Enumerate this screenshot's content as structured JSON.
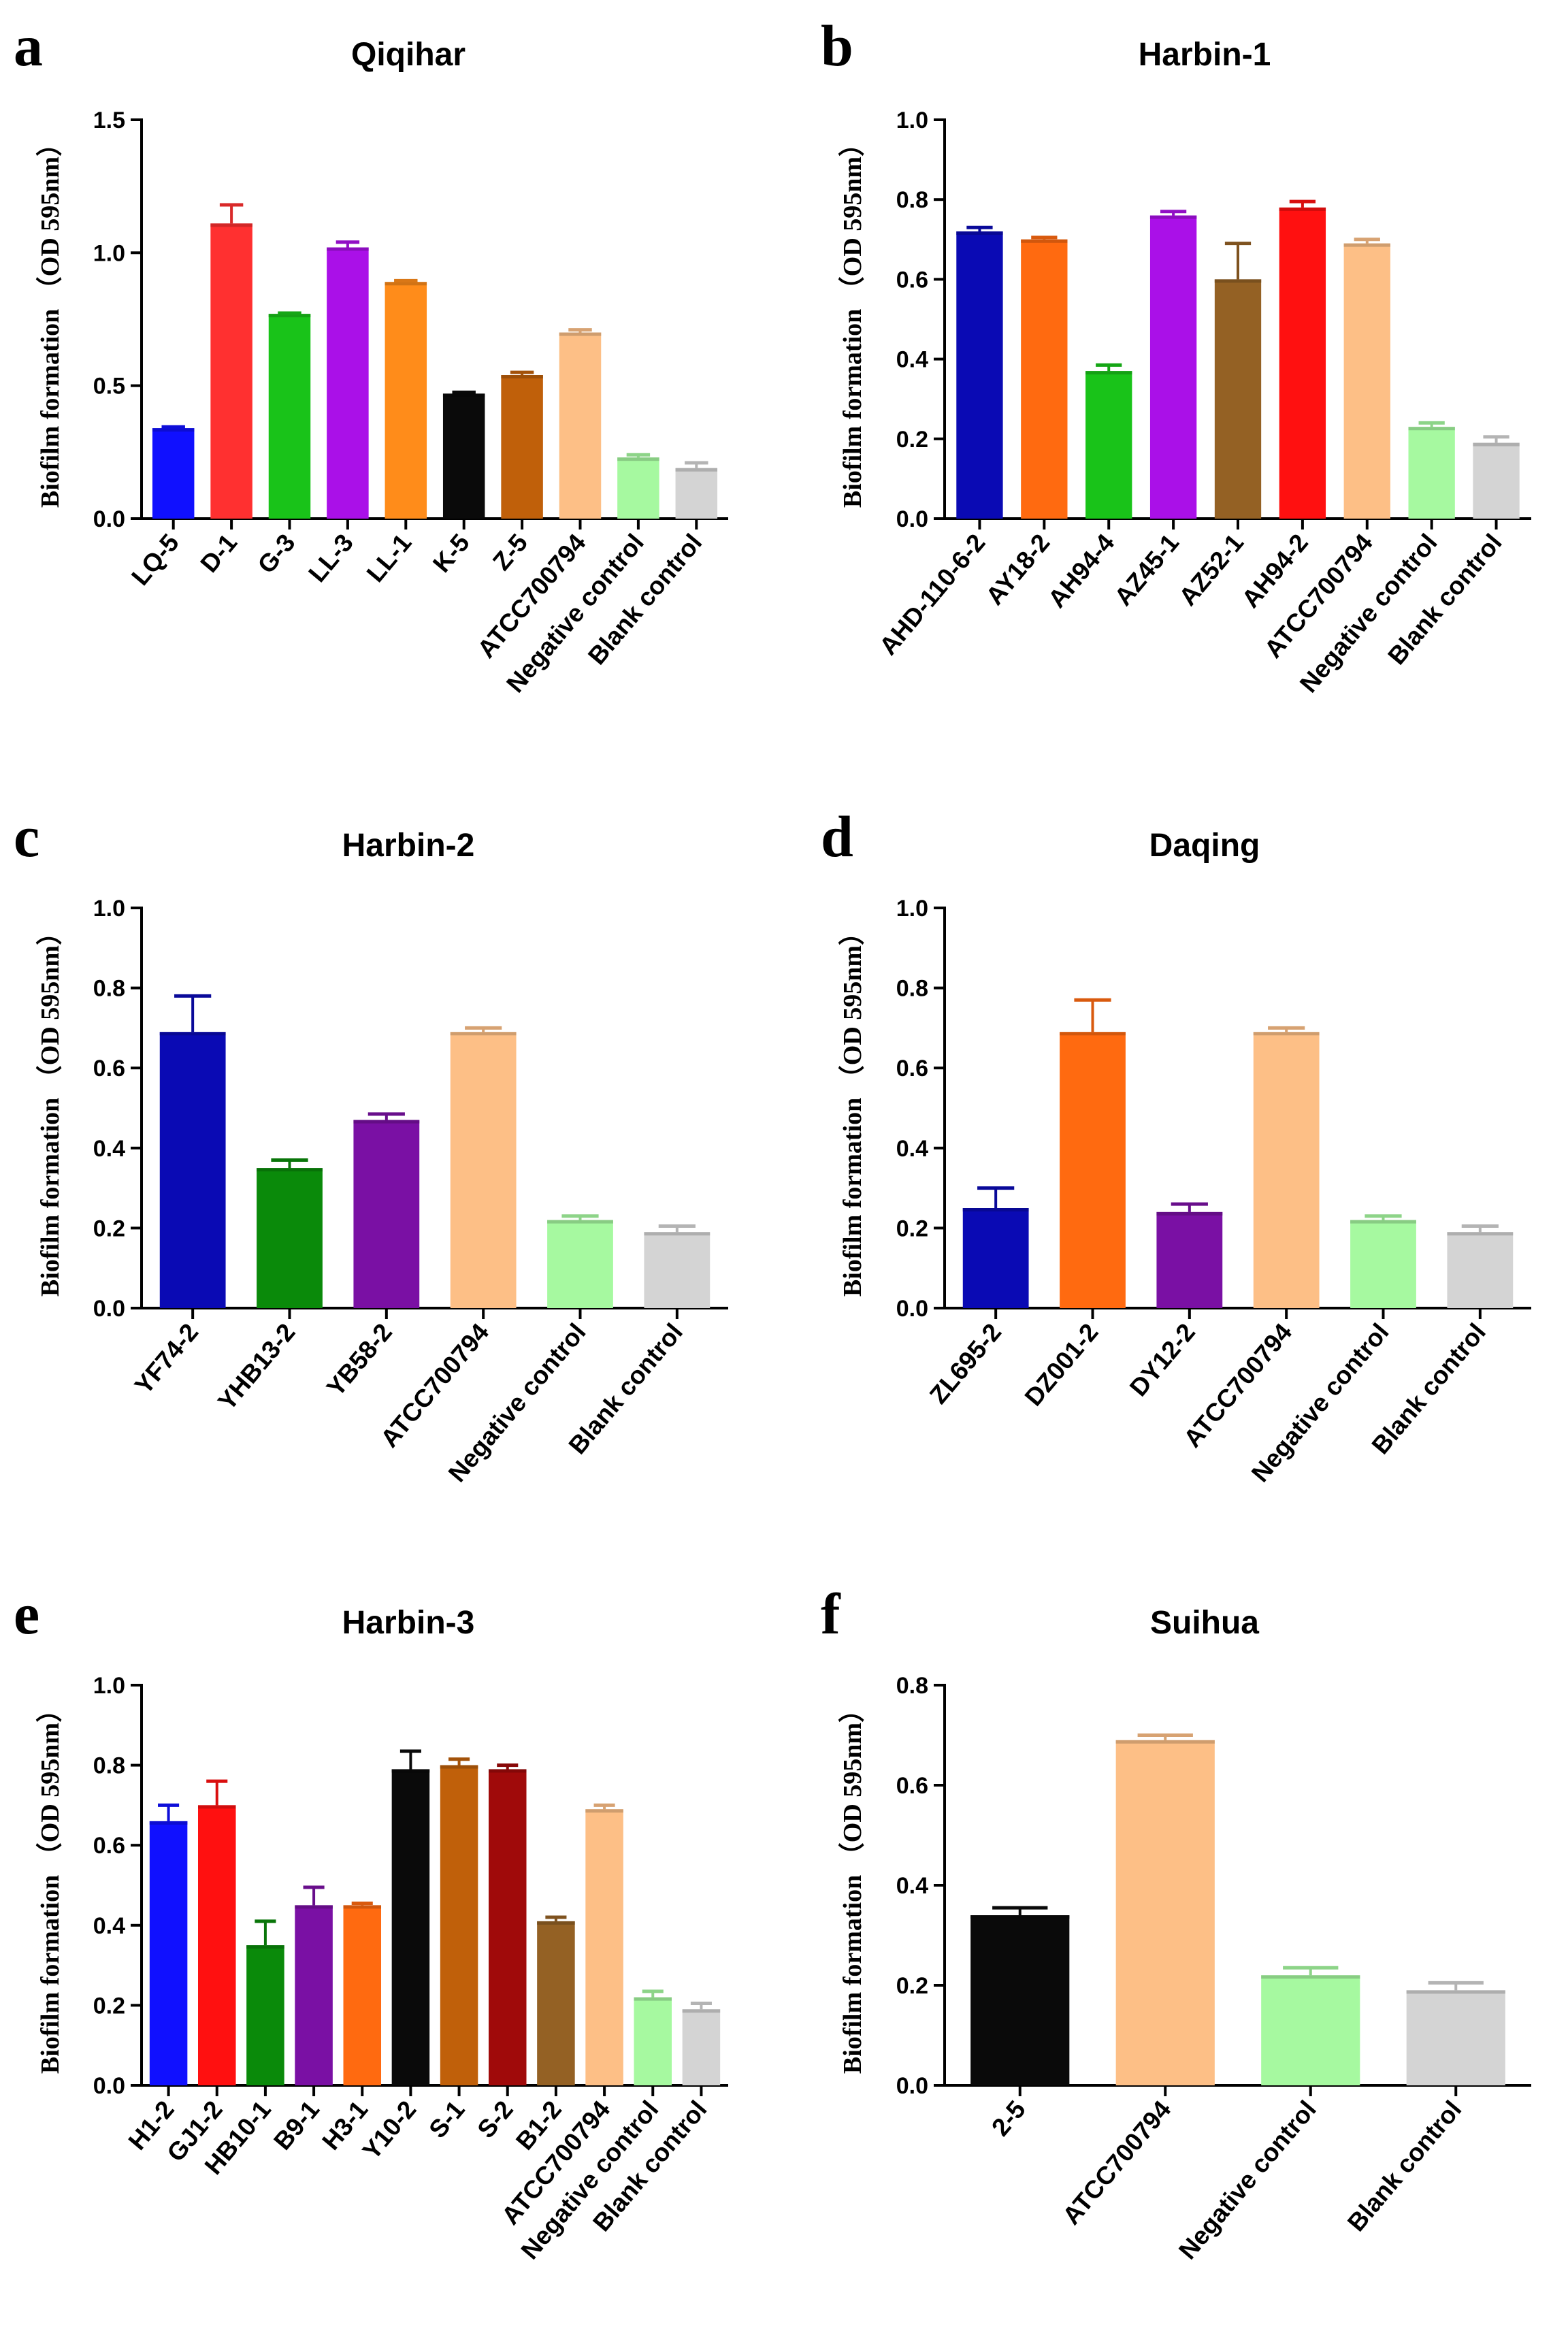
{
  "chart_data": [
    {
      "panel": "a",
      "type": "bar",
      "title": "Qiqihar",
      "ylabel": "Biofilm formation （OD 595nm）",
      "xlabel": "",
      "ylim": [
        0,
        1.5
      ],
      "yticks": [
        "0.0",
        "0.5",
        "1.0",
        "1.5"
      ],
      "categories": [
        "LQ-5",
        "D-1",
        "G-3",
        "LL-3",
        "LL-1",
        "K-5",
        "Z-5",
        "ATCC700794",
        "Negative control",
        "Blank control"
      ],
      "values": [
        0.34,
        1.11,
        0.77,
        1.02,
        0.89,
        0.47,
        0.54,
        0.7,
        0.23,
        0.19
      ],
      "errors": [
        0.005,
        0.07,
        0.003,
        0.02,
        0.005,
        0.005,
        0.01,
        0.01,
        0.01,
        0.02
      ],
      "colors": [
        "#1010ff",
        "#ff3030",
        "#19c319",
        "#aa10e8",
        "#ff8c1a",
        "#0a0a0a",
        "#c0600a",
        "#fdbf86",
        "#a6f9a0",
        "#d4d4d4"
      ]
    },
    {
      "panel": "b",
      "type": "bar",
      "title": "Harbin-1",
      "ylabel": "Biofilm formation （OD 595nm）",
      "xlabel": "",
      "ylim": [
        0,
        1.0
      ],
      "yticks": [
        "0.0",
        "0.2",
        "0.4",
        "0.6",
        "0.8",
        "1.0"
      ],
      "categories": [
        "AHD-110-6-2",
        "AY18-2",
        "AH94-4",
        "AZ45-1",
        "AZ52-1",
        "AH94-2",
        "ATCC700794",
        "Negative control",
        "Blank control"
      ],
      "values": [
        0.72,
        0.7,
        0.37,
        0.76,
        0.6,
        0.78,
        0.69,
        0.23,
        0.19
      ],
      "errors": [
        0.01,
        0.005,
        0.015,
        0.01,
        0.09,
        0.015,
        0.01,
        0.01,
        0.015
      ],
      "colors": [
        "#0a0ab4",
        "#ff6a10",
        "#19c319",
        "#aa10e8",
        "#946124",
        "#ff1010",
        "#fdbf86",
        "#a6f9a0",
        "#d4d4d4"
      ]
    },
    {
      "panel": "c",
      "type": "bar",
      "title": "Harbin-2",
      "ylabel": "Biofilm formation （OD 595nm）",
      "xlabel": "",
      "ylim": [
        0,
        1.0
      ],
      "yticks": [
        "0.0",
        "0.2",
        "0.4",
        "0.6",
        "0.8",
        "1.0"
      ],
      "categories": [
        "YF74-2",
        "YHB13-2",
        "YB58-2",
        "ATCC700794",
        "Negative control",
        "Blank control"
      ],
      "values": [
        0.69,
        0.35,
        0.47,
        0.69,
        0.22,
        0.19
      ],
      "errors": [
        0.09,
        0.02,
        0.015,
        0.01,
        0.01,
        0.015
      ],
      "colors": [
        "#0a0ab4",
        "#0a8a0a",
        "#7a10a4",
        "#fdbf86",
        "#a6f9a0",
        "#d4d4d4"
      ]
    },
    {
      "panel": "d",
      "type": "bar",
      "title": "Daqing",
      "ylabel": "Biofilm formation （OD 595nm）",
      "xlabel": "",
      "ylim": [
        0,
        1.0
      ],
      "yticks": [
        "0.0",
        "0.2",
        "0.4",
        "0.6",
        "0.8",
        "1.0"
      ],
      "categories": [
        "ZL695-2",
        "DZ001-2",
        "DY12-2",
        "ATCC700794",
        "Negative control",
        "Blank control"
      ],
      "values": [
        0.25,
        0.69,
        0.24,
        0.69,
        0.22,
        0.19
      ],
      "errors": [
        0.05,
        0.08,
        0.02,
        0.01,
        0.01,
        0.015
      ],
      "colors": [
        "#0a0ab4",
        "#ff6a10",
        "#7a10a4",
        "#fdbf86",
        "#a6f9a0",
        "#d4d4d4"
      ]
    },
    {
      "panel": "e",
      "type": "bar",
      "title": "Harbin-3",
      "ylabel": "Biofilm formation （OD 595nm）",
      "xlabel": "",
      "ylim": [
        0,
        1.0
      ],
      "yticks": [
        "0.0",
        "0.2",
        "0.4",
        "0.6",
        "0.8",
        "1.0"
      ],
      "categories": [
        "H1-2",
        "GJ1-2",
        "HB10-1",
        "B9-1",
        "H3-1",
        "Y10-2",
        "S-1",
        "S-2",
        "B1-2",
        "ATCC700794",
        "Negative control",
        "Blank control"
      ],
      "values": [
        0.66,
        0.7,
        0.35,
        0.45,
        0.45,
        0.79,
        0.8,
        0.79,
        0.41,
        0.69,
        0.22,
        0.19
      ],
      "errors": [
        0.04,
        0.06,
        0.06,
        0.045,
        0.005,
        0.045,
        0.015,
        0.01,
        0.01,
        0.01,
        0.015,
        0.015
      ],
      "colors": [
        "#1010ff",
        "#ff1010",
        "#0a8a0a",
        "#7a10a4",
        "#ff6a10",
        "#0a0a0a",
        "#c0600a",
        "#a00a0a",
        "#946124",
        "#fdbf86",
        "#a6f9a0",
        "#d4d4d4"
      ]
    },
    {
      "panel": "f",
      "type": "bar",
      "title": "Suihua",
      "ylabel": "Biofilm formation （OD 595nm）",
      "xlabel": "",
      "ylim": [
        0,
        0.8
      ],
      "yticks": [
        "0.0",
        "0.2",
        "0.4",
        "0.6",
        "0.8"
      ],
      "categories": [
        "2-5",
        "ATCC700794",
        "Negative control",
        "Blank control"
      ],
      "values": [
        0.34,
        0.69,
        0.22,
        0.19
      ],
      "errors": [
        0.015,
        0.01,
        0.015,
        0.015
      ],
      "colors": [
        "#0a0a0a",
        "#fdbf86",
        "#a6f9a0",
        "#d4d4d4"
      ]
    }
  ]
}
